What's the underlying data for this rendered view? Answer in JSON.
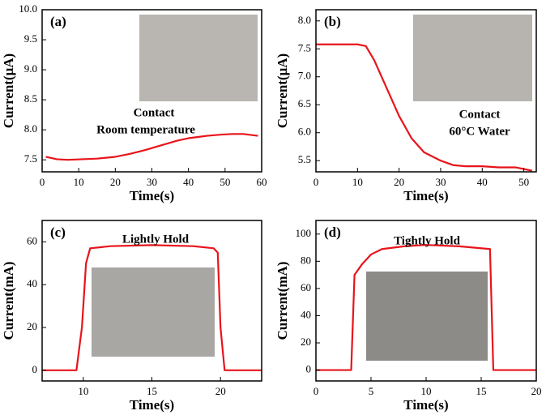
{
  "chart_data": [
    {
      "type": "line",
      "panel_label": "(a)",
      "x_label": "Time(s)",
      "y_label": "Current(μA)",
      "annotations": [
        "Contact",
        "Room temperature"
      ],
      "x": [
        1,
        4,
        7,
        11,
        15,
        20,
        24,
        28,
        33,
        37,
        40,
        45,
        49,
        52,
        55,
        59
      ],
      "values": [
        7.55,
        7.51,
        7.5,
        7.51,
        7.52,
        7.55,
        7.6,
        7.66,
        7.75,
        7.82,
        7.86,
        7.9,
        7.92,
        7.93,
        7.93,
        7.9
      ],
      "color": "#e8141b",
      "xlim": [
        0,
        60
      ],
      "ylim": [
        7.3,
        10.0
      ],
      "xticks": [
        0,
        10,
        20,
        30,
        40,
        50,
        60
      ],
      "yticks": [
        7.5,
        {
          "value": 8,
          "label": "8.0"
        },
        8.5,
        {
          "value": 9,
          "label": "9.0"
        },
        9.5,
        {
          "value": 10,
          "label": "10.0"
        }
      ],
      "grid": false
    },
    {
      "type": "line",
      "panel_label": "(b)",
      "x_label": "Time(s)",
      "y_label": "Current(μA)",
      "annotations": [
        "Contact",
        "60°C Water"
      ],
      "x": [
        0,
        5,
        10,
        12,
        14,
        17,
        20,
        23,
        26,
        30,
        33,
        36,
        40,
        44,
        48,
        52
      ],
      "values": [
        7.58,
        7.58,
        7.58,
        7.55,
        7.3,
        6.8,
        6.3,
        5.9,
        5.65,
        5.5,
        5.42,
        5.4,
        5.4,
        5.38,
        5.38,
        5.32
      ],
      "color": "#e8141b",
      "xlim": [
        0,
        53
      ],
      "ylim": [
        5.3,
        8.2
      ],
      "xticks": [
        0,
        10,
        20,
        30,
        40,
        50
      ],
      "yticks": [
        5.5,
        {
          "value": 6,
          "label": "6.0"
        },
        6.5,
        {
          "value": 7,
          "label": "7.0"
        },
        7.5,
        {
          "value": 8,
          "label": "8.0"
        }
      ],
      "grid": false
    },
    {
      "type": "line",
      "panel_label": "(c)",
      "x_label": "Time(s)",
      "y_label": "Current(mA)",
      "annotations": [
        "Lightly  Hold"
      ],
      "x": [
        7,
        9.5,
        9.9,
        10.2,
        10.5,
        12,
        15,
        18,
        19.5,
        19.8,
        20.0,
        20.3,
        23
      ],
      "values": [
        0,
        0,
        20,
        50,
        57,
        58,
        58.5,
        58,
        57,
        55,
        20,
        0,
        0
      ],
      "color": "#e8141b",
      "xlim": [
        7,
        23
      ],
      "ylim": [
        -5,
        70
      ],
      "xticks": [
        10,
        15,
        20
      ],
      "yticks": [
        0,
        20,
        40,
        60
      ],
      "grid": false
    },
    {
      "type": "line",
      "panel_label": "(d)",
      "x_label": "Time(s)",
      "y_label": "Current(mA)",
      "annotations": [
        "Tightly  Hold"
      ],
      "x": [
        0,
        3.2,
        3.5,
        4.2,
        5,
        6,
        8,
        10,
        13,
        15.8,
        16.1,
        20
      ],
      "values": [
        0,
        0,
        70,
        78,
        85,
        89,
        91,
        92,
        91,
        89,
        0,
        0
      ],
      "color": "#e8141b",
      "xlim": [
        0,
        20
      ],
      "ylim": [
        -8,
        110
      ],
      "xticks": [
        0,
        5,
        10,
        15,
        20
      ],
      "yticks": [
        0,
        20,
        40,
        60,
        80,
        100
      ],
      "grid": false
    }
  ]
}
